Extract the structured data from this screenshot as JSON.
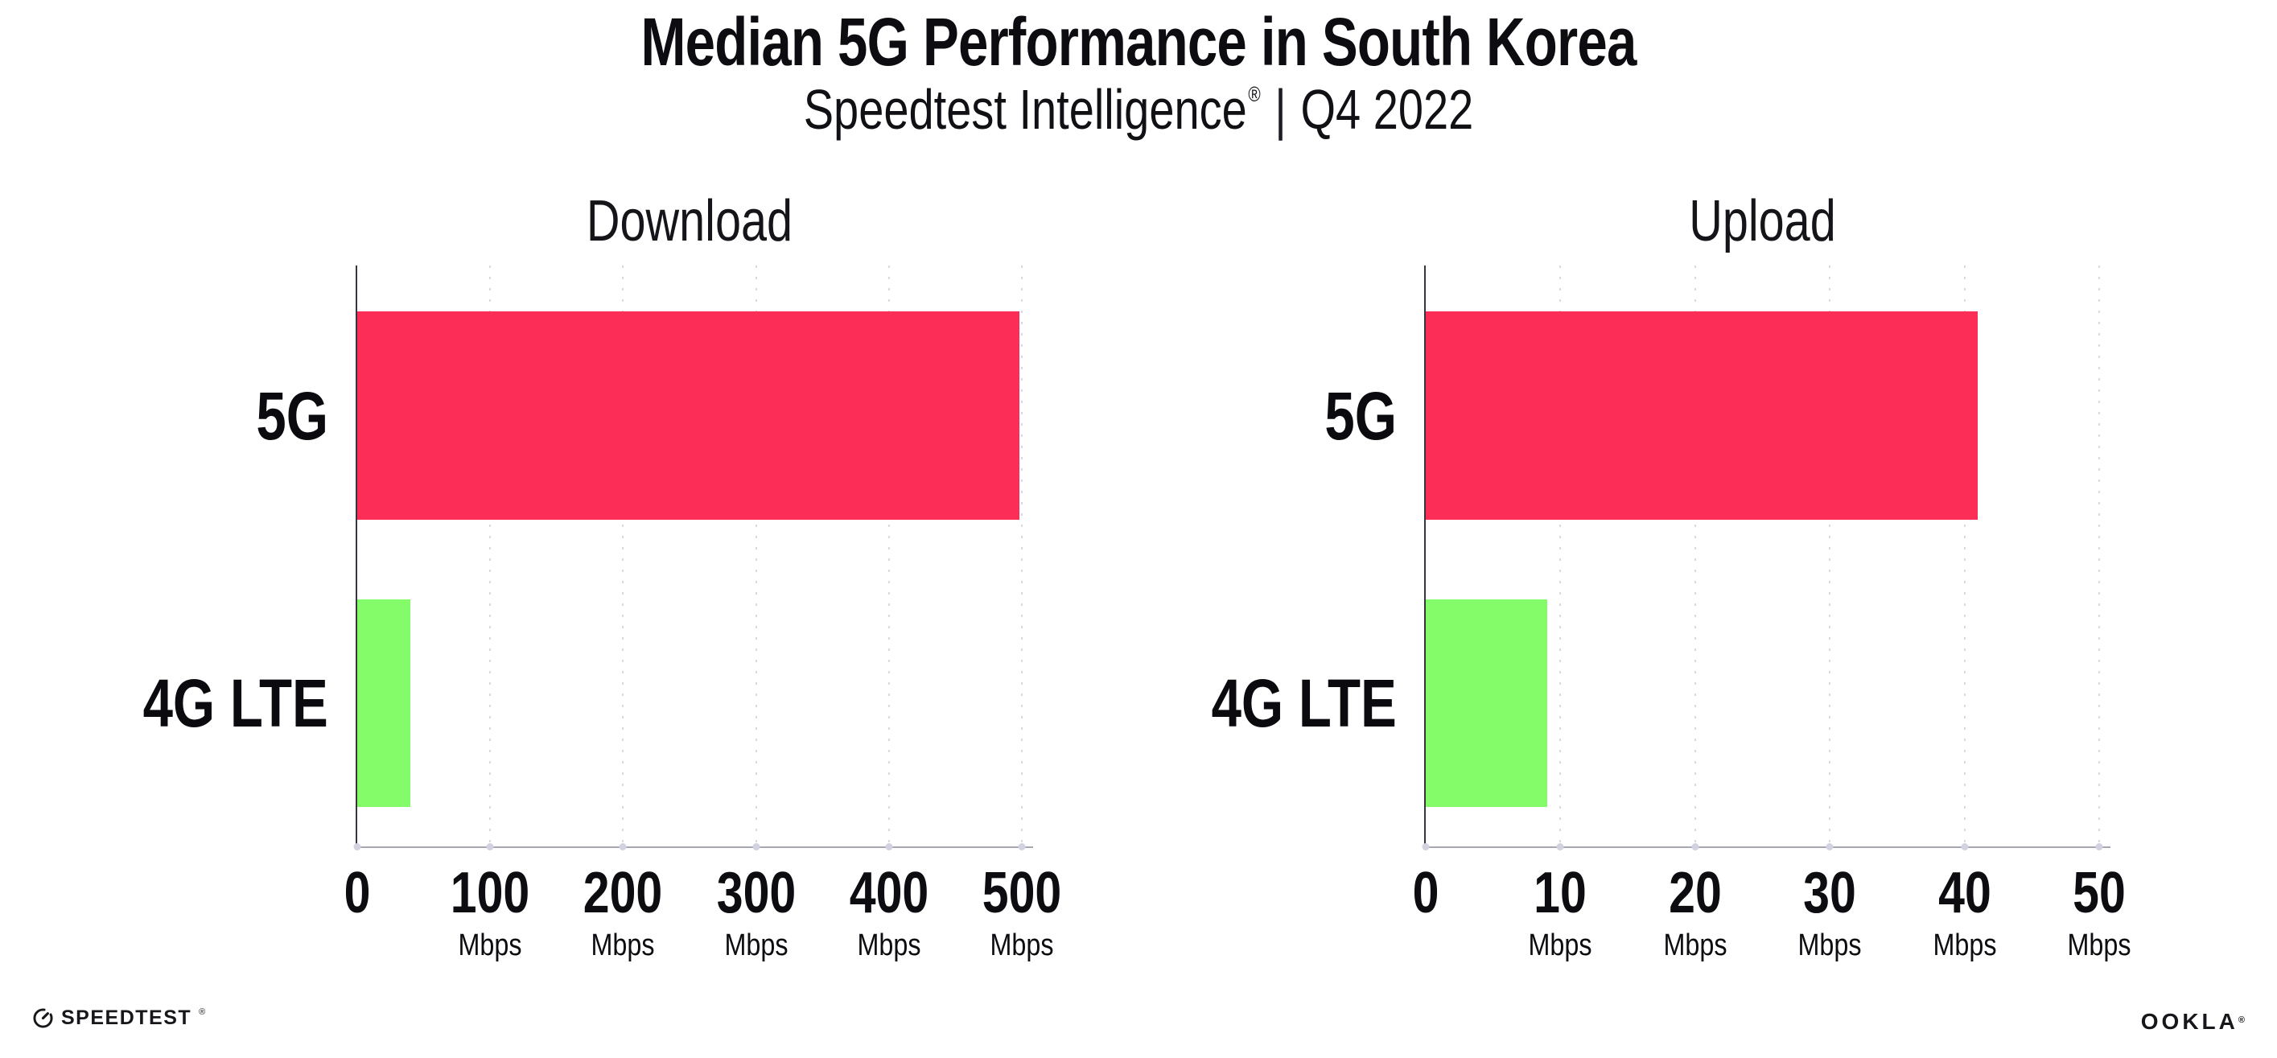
{
  "header": {
    "title": "Median 5G Performance in South Korea",
    "subtitle": {
      "brand": "Speedtest Intelligence",
      "registered": "®",
      "divider": "|",
      "period": "Q4 2022"
    }
  },
  "footer": {
    "speedtest_wordmark": "SPEEDTEST",
    "speedtest_trademark": "®",
    "ookla_wordmark": "OOKLA",
    "ookla_trademark": "®"
  },
  "colors": {
    "bar_5g": "#FC2E57",
    "bar_4g_lte": "#84FB68"
  },
  "chart_data": [
    {
      "type": "bar",
      "orientation": "horizontal",
      "title": "Download",
      "categories": [
        "5G",
        "4G LTE"
      ],
      "values": [
        498,
        40
      ],
      "value_unit": "Mbps",
      "xlim": [
        0,
        500
      ],
      "xticks": [
        0,
        100,
        200,
        300,
        400,
        500
      ],
      "ticks": [
        {
          "label": "0",
          "unit": ""
        },
        {
          "label": "100",
          "unit": "Mbps"
        },
        {
          "label": "200",
          "unit": "Mbps"
        },
        {
          "label": "300",
          "unit": "Mbps"
        },
        {
          "label": "400",
          "unit": "Mbps"
        },
        {
          "label": "500",
          "unit": "Mbps"
        }
      ],
      "bar_colors": [
        "#FC2E57",
        "#84FB68"
      ],
      "grid": "vertical-dotted",
      "legend": "none"
    },
    {
      "type": "bar",
      "orientation": "horizontal",
      "title": "Upload",
      "categories": [
        "5G",
        "4G LTE"
      ],
      "values": [
        41,
        9
      ],
      "value_unit": "Mbps",
      "xlim": [
        0,
        50
      ],
      "xticks": [
        0,
        10,
        20,
        30,
        40,
        50
      ],
      "ticks": [
        {
          "label": "0",
          "unit": ""
        },
        {
          "label": "10",
          "unit": "Mbps"
        },
        {
          "label": "20",
          "unit": "Mbps"
        },
        {
          "label": "30",
          "unit": "Mbps"
        },
        {
          "label": "40",
          "unit": "Mbps"
        },
        {
          "label": "50",
          "unit": "Mbps"
        }
      ],
      "bar_colors": [
        "#FC2E57",
        "#84FB68"
      ],
      "grid": "vertical-dotted",
      "legend": "none"
    }
  ]
}
